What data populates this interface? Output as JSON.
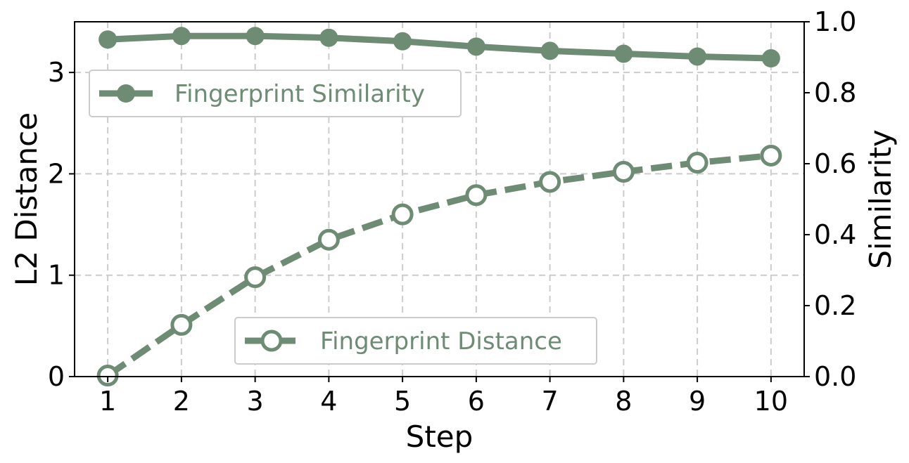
{
  "chart_data": {
    "type": "line",
    "x": [
      1,
      2,
      3,
      4,
      5,
      6,
      7,
      8,
      9,
      10
    ],
    "xlabel": "Step",
    "ylabel_left": "L2 Distance",
    "ylabel_right": "Similarity",
    "xlim": [
      0.55,
      10.45
    ],
    "ylim_left": [
      0,
      3.5
    ],
    "ylim_right": [
      0,
      1.0
    ],
    "x_ticks": [
      "1",
      "2",
      "3",
      "4",
      "5",
      "6",
      "7",
      "8",
      "9",
      "10"
    ],
    "y_left_ticks": [
      "0",
      "1",
      "2",
      "3"
    ],
    "y_right_ticks": [
      "0.0",
      "0.2",
      "0.4",
      "0.6",
      "0.8",
      "1.0"
    ],
    "grid": true,
    "color": "#6e8b74",
    "series": [
      {
        "name": "Fingerprint Similarity",
        "axis": "right",
        "marker": "filled-circle",
        "line_style": "solid",
        "legend_position": "upper-left",
        "values": [
          0.95,
          0.96,
          0.96,
          0.955,
          0.945,
          0.93,
          0.918,
          0.91,
          0.902,
          0.897
        ]
      },
      {
        "name": "Fingerprint Distance",
        "axis": "left",
        "marker": "hollow-circle",
        "line_style": "dashed",
        "legend_position": "lower-center",
        "values": [
          0.01,
          0.51,
          0.98,
          1.35,
          1.6,
          1.79,
          1.92,
          2.02,
          2.11,
          2.18
        ]
      }
    ]
  }
}
